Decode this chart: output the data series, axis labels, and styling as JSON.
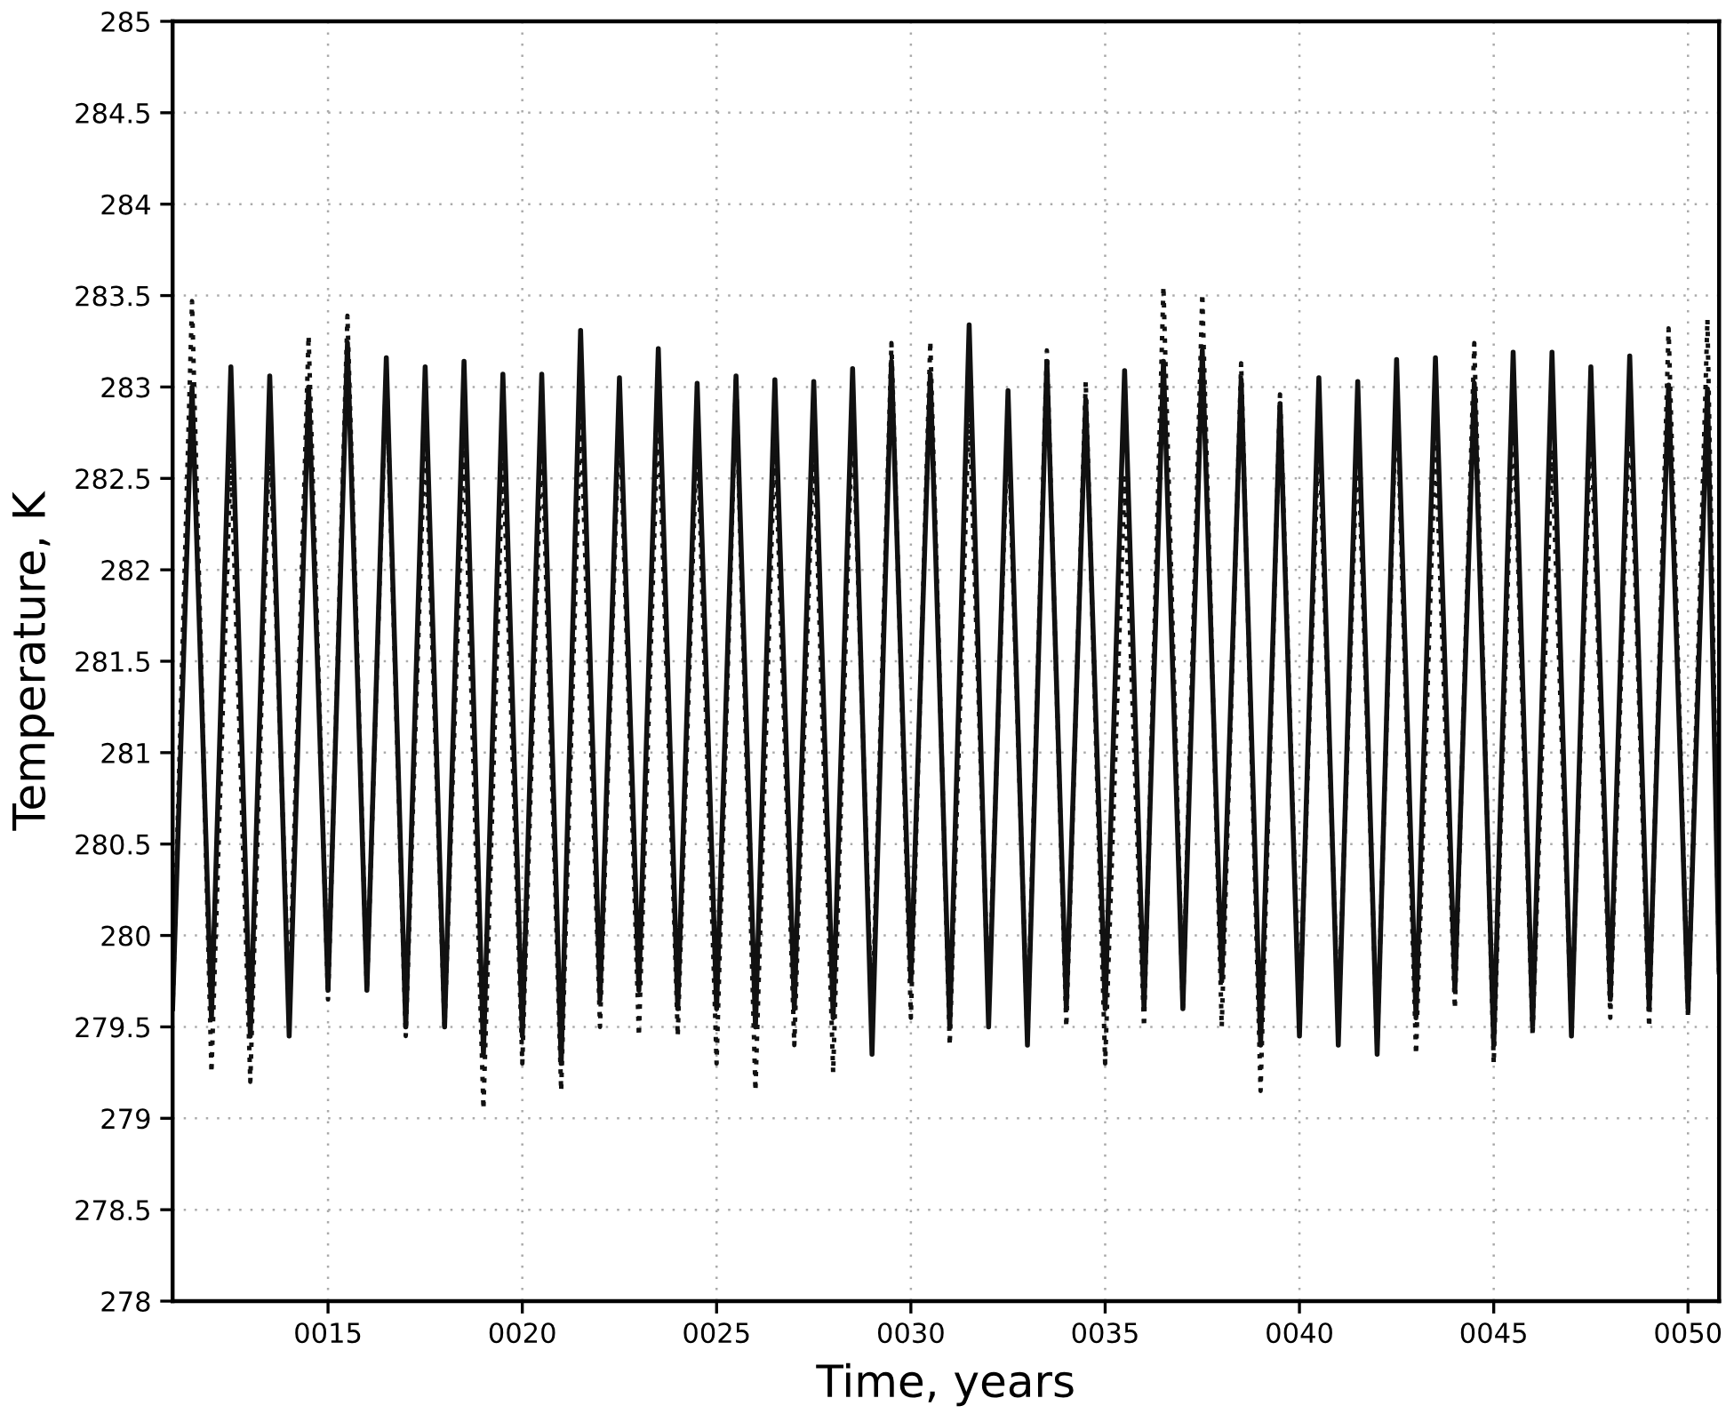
{
  "chart_data": {
    "type": "line",
    "xlabel": "Time, years",
    "ylabel": "Temperature, K",
    "x": [
      11.0,
      11.5,
      12.0,
      12.5,
      13.0,
      13.5,
      14.0,
      14.5,
      15.0,
      15.5,
      16.0,
      16.5,
      17.0,
      17.5,
      18.0,
      18.5,
      19.0,
      19.5,
      20.0,
      20.5,
      21.0,
      21.5,
      22.0,
      22.5,
      23.0,
      23.5,
      24.0,
      24.5,
      25.0,
      25.5,
      26.0,
      26.5,
      27.0,
      27.5,
      28.0,
      28.5,
      29.0,
      29.5,
      30.0,
      30.5,
      31.0,
      31.5,
      32.0,
      32.5,
      33.0,
      33.5,
      34.0,
      34.5,
      35.0,
      35.5,
      36.0,
      36.5,
      37.0,
      37.5,
      38.0,
      38.5,
      39.0,
      39.5,
      40.0,
      40.5,
      41.0,
      41.5,
      42.0,
      42.5,
      43.0,
      43.5,
      44.0,
      44.5,
      45.0,
      45.5,
      46.0,
      46.5,
      47.0,
      47.5,
      48.0,
      48.5,
      49.0,
      49.5,
      50.0,
      50.5,
      50.8
    ],
    "series": [
      {
        "color": "#111111",
        "line_style": "solid",
        "values": [
          279.6,
          283.0,
          279.55,
          283.11,
          279.45,
          283.06,
          279.45,
          283.0,
          279.7,
          283.24,
          279.7,
          283.16,
          279.5,
          283.11,
          279.5,
          283.14,
          279.35,
          283.07,
          279.45,
          283.07,
          279.3,
          283.31,
          279.65,
          283.05,
          279.7,
          283.21,
          279.6,
          283.02,
          279.6,
          283.06,
          279.5,
          283.04,
          279.6,
          283.03,
          279.55,
          283.1,
          279.35,
          283.14,
          279.75,
          283.07,
          279.5,
          283.34,
          279.5,
          282.98,
          279.4,
          283.14,
          279.6,
          282.93,
          279.6,
          283.09,
          279.6,
          283.14,
          279.6,
          283.2,
          279.75,
          283.04,
          279.4,
          282.91,
          279.45,
          283.05,
          279.4,
          283.03,
          279.35,
          283.15,
          279.55,
          283.16,
          279.7,
          283.02,
          279.4,
          283.19,
          279.5,
          283.19,
          279.45,
          283.11,
          279.65,
          283.17,
          279.6,
          283.01,
          279.6,
          282.99,
          279.8
        ]
      },
      {
        "color": "#111111",
        "line_style": "dotted",
        "values": [
          279.6,
          283.47,
          279.25,
          282.65,
          279.2,
          282.8,
          279.6,
          283.28,
          279.65,
          283.39,
          279.7,
          283.1,
          279.45,
          282.8,
          279.5,
          282.73,
          279.05,
          282.66,
          279.3,
          282.76,
          279.15,
          282.88,
          279.5,
          282.9,
          279.45,
          282.9,
          279.45,
          282.8,
          279.3,
          283.04,
          279.15,
          282.76,
          279.4,
          282.75,
          279.25,
          282.9,
          279.5,
          283.24,
          279.55,
          283.25,
          279.4,
          282.9,
          279.6,
          282.83,
          279.45,
          283.2,
          279.5,
          283.03,
          279.3,
          282.5,
          279.5,
          283.55,
          279.6,
          283.51,
          279.5,
          283.13,
          279.15,
          282.96,
          279.5,
          282.8,
          279.5,
          282.76,
          279.4,
          283.02,
          279.35,
          282.73,
          279.6,
          283.24,
          279.3,
          282.92,
          279.45,
          282.66,
          279.5,
          282.83,
          279.55,
          282.92,
          279.5,
          283.32,
          279.55,
          283.37,
          279.8
        ]
      }
    ],
    "xlim": [
      11,
      50.8
    ],
    "xticks": [
      {
        "value": 15,
        "label": "0015"
      },
      {
        "value": 20,
        "label": "0020"
      },
      {
        "value": 25,
        "label": "0025"
      },
      {
        "value": 30,
        "label": "0030"
      },
      {
        "value": 35,
        "label": "0035"
      },
      {
        "value": 40,
        "label": "0040"
      },
      {
        "value": 45,
        "label": "0045"
      },
      {
        "value": 50,
        "label": "0050"
      }
    ],
    "ylim": [
      278,
      285
    ],
    "yticks": [
      278,
      278.5,
      279,
      279.5,
      280,
      280.5,
      281,
      281.5,
      282,
      282.5,
      283,
      283.5,
      284,
      284.5,
      285
    ],
    "grid": true,
    "marker": "none"
  }
}
